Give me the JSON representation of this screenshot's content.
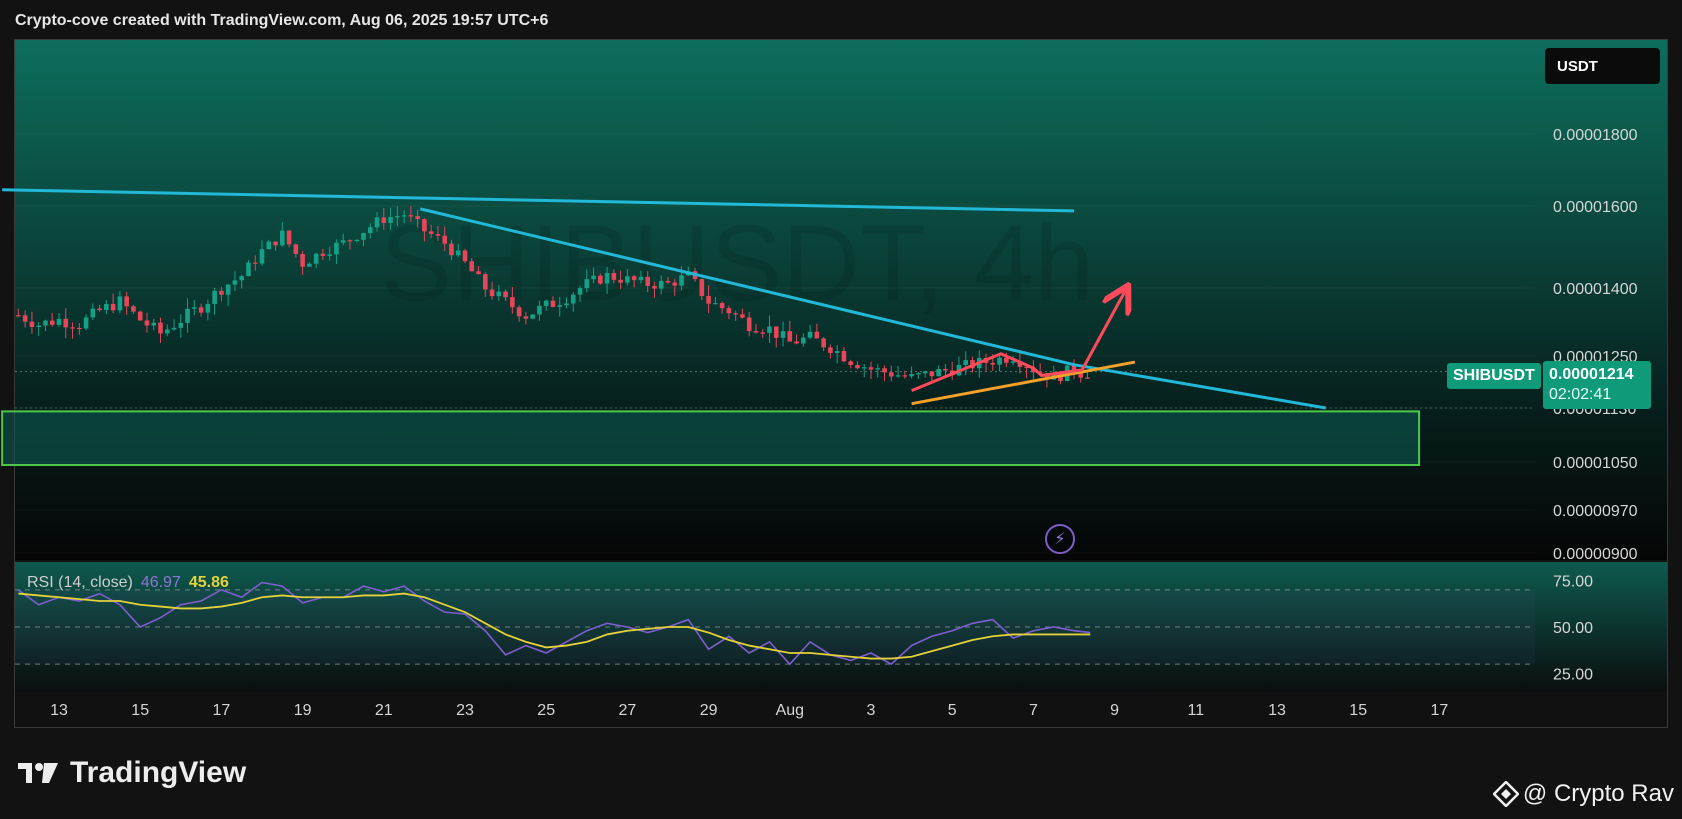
{
  "header": {
    "text": "Crypto-cove created with TradingView.com, Aug 06, 2025 19:57 UTC+6"
  },
  "watermark": {
    "symbol": "SHIBUSDT, 4h"
  },
  "currency": "USDT",
  "symbol_tag": "SHIBUSDT",
  "price_tag": {
    "price": "0.00001214",
    "countdown": "02:02:41"
  },
  "rsi_legend": {
    "label": "RSI (14, close)",
    "rsi_value": "46.97",
    "ma_value": "45.86"
  },
  "brand": {
    "name": "TradingView"
  },
  "credit": {
    "text": "@ Crypto Rav"
  },
  "colors": {
    "up": "#16a087",
    "down": "#e8455a",
    "trendline": "#22b8d8",
    "support_line": "#f3a12a",
    "pattern": "#ff4a5c",
    "zone_border": "#4cc74a",
    "rsi": "#7e5fd0",
    "rsi_ma": "#e4d23a"
  },
  "chart_data": [
    {
      "type": "candlestick",
      "symbol": "SHIBUSDT",
      "timeframe": "4h",
      "x_tick_labels": [
        "13",
        "15",
        "17",
        "19",
        "21",
        "23",
        "25",
        "27",
        "29",
        "Aug",
        "3",
        "5",
        "7",
        "9",
        "11",
        "13",
        "15",
        "17"
      ],
      "y_tick_labels": [
        "0.00001800",
        "0.00001600",
        "0.00001400",
        "0.00001250",
        "0.00001130",
        "0.00001050",
        "0.00000970",
        "0.00000900"
      ],
      "close_path": [
        [
          12.0,
          1.34e-05
        ],
        [
          12.5,
          1.32e-05
        ],
        [
          13.0,
          1.33e-05
        ],
        [
          13.5,
          1.32e-05
        ],
        [
          14.0,
          1.35e-05
        ],
        [
          14.5,
          1.37e-05
        ],
        [
          15.0,
          1.33e-05
        ],
        [
          15.5,
          1.3e-05
        ],
        [
          16.0,
          1.33e-05
        ],
        [
          16.5,
          1.36e-05
        ],
        [
          17.0,
          1.4e-05
        ],
        [
          17.5,
          1.43e-05
        ],
        [
          18.0,
          1.49e-05
        ],
        [
          18.5,
          1.53e-05
        ],
        [
          19.0,
          1.46e-05
        ],
        [
          19.5,
          1.49e-05
        ],
        [
          20.0,
          1.51e-05
        ],
        [
          20.5,
          1.54e-05
        ],
        [
          21.0,
          1.57e-05
        ],
        [
          21.5,
          1.58e-05
        ],
        [
          22.0,
          1.54e-05
        ],
        [
          22.5,
          1.51e-05
        ],
        [
          23.0,
          1.46e-05
        ],
        [
          23.5,
          1.4e-05
        ],
        [
          24.0,
          1.37e-05
        ],
        [
          24.5,
          1.34e-05
        ],
        [
          25.0,
          1.36e-05
        ],
        [
          25.5,
          1.38e-05
        ],
        [
          26.0,
          1.41e-05
        ],
        [
          26.5,
          1.43e-05
        ],
        [
          27.0,
          1.42e-05
        ],
        [
          27.5,
          1.41e-05
        ],
        [
          28.0,
          1.41e-05
        ],
        [
          28.5,
          1.43e-05
        ],
        [
          29.0,
          1.37e-05
        ],
        [
          29.5,
          1.35e-05
        ],
        [
          30.0,
          1.32e-05
        ],
        [
          30.5,
          1.31e-05
        ],
        [
          31.0,
          1.28e-05
        ],
        [
          31.5,
          1.29e-05
        ],
        [
          32.0,
          1.27e-05
        ],
        [
          32.5,
          1.24e-05
        ],
        [
          33.0,
          1.22e-05
        ],
        [
          33.5,
          1.21e-05
        ],
        [
          34.0,
          1.2e-05
        ],
        [
          34.5,
          1.21e-05
        ],
        [
          35.0,
          1.22e-05
        ],
        [
          35.5,
          1.23e-05
        ],
        [
          36.0,
          1.24e-05
        ],
        [
          36.5,
          1.25e-05
        ],
        [
          37.0,
          1.22e-05
        ],
        [
          37.5,
          1.2e-05
        ],
        [
          37.75,
          1.21e-05
        ],
        [
          38.0,
          1.22e-05
        ],
        [
          38.2,
          1.21e-05
        ],
        [
          38.4,
          1.21e-05
        ]
      ],
      "annotations": [
        {
          "kind": "trendline",
          "points": [
            [
              11.6,
              1.645e-05
            ],
            [
              38.0,
              1.588e-05
            ]
          ]
        },
        {
          "kind": "trendline",
          "points": [
            [
              21.9,
              1.593e-05
            ],
            [
              38.0,
              1.23e-05
            ],
            [
              44.2,
              1.13e-05
            ]
          ]
        },
        {
          "kind": "support_line",
          "points": [
            [
              34.0,
              1.14e-05
            ],
            [
              39.5,
              1.236e-05
            ]
          ]
        },
        {
          "kind": "pattern",
          "points": [
            [
              34.0,
              1.17e-05
            ],
            [
              36.2,
              1.255e-05
            ],
            [
              37.0,
              1.222e-05
            ],
            [
              37.2,
              1.205e-05
            ],
            [
              38.2,
              1.218e-05
            ]
          ]
        },
        {
          "kind": "projection_arrow",
          "points": [
            [
              38.2,
              1.218e-05
            ],
            [
              39.3,
              1.4e-05
            ]
          ]
        },
        {
          "kind": "support_zone",
          "x_range": [
            11.6,
            46.5
          ],
          "y_range": [
            1.045e-05,
            1.125e-05
          ]
        }
      ]
    },
    {
      "type": "line",
      "title": "RSI (14, close)",
      "ylim": [
        15,
        85
      ],
      "y_tick_labels": [
        "75.00",
        "50.00",
        "25.00"
      ],
      "levels": [
        70,
        50,
        30
      ],
      "series": [
        {
          "name": "RSI",
          "values": [
            [
              12.0,
              70
            ],
            [
              12.5,
              62
            ],
            [
              13.0,
              66
            ],
            [
              13.5,
              64
            ],
            [
              14.0,
              68
            ],
            [
              14.5,
              62
            ],
            [
              15.0,
              50
            ],
            [
              15.5,
              55
            ],
            [
              16.0,
              62
            ],
            [
              16.5,
              64
            ],
            [
              17.0,
              70
            ],
            [
              17.5,
              66
            ],
            [
              18.0,
              74
            ],
            [
              18.5,
              72
            ],
            [
              19.0,
              63
            ],
            [
              19.5,
              66
            ],
            [
              20.0,
              66
            ],
            [
              20.5,
              72
            ],
            [
              21.0,
              69
            ],
            [
              21.5,
              72
            ],
            [
              22.0,
              64
            ],
            [
              22.5,
              58
            ],
            [
              23.0,
              57
            ],
            [
              23.5,
              48
            ],
            [
              24.0,
              35
            ],
            [
              24.5,
              40
            ],
            [
              25.0,
              36
            ],
            [
              25.5,
              42
            ],
            [
              26.0,
              48
            ],
            [
              26.5,
              52
            ],
            [
              27.0,
              50
            ],
            [
              27.5,
              47
            ],
            [
              28.0,
              50
            ],
            [
              28.5,
              54
            ],
            [
              29.0,
              38
            ],
            [
              29.5,
              45
            ],
            [
              30.0,
              36
            ],
            [
              30.5,
              42
            ],
            [
              31.0,
              30
            ],
            [
              31.5,
              42
            ],
            [
              32.0,
              35
            ],
            [
              32.5,
              32
            ],
            [
              33.0,
              36
            ],
            [
              33.5,
              30
            ],
            [
              34.0,
              40
            ],
            [
              34.5,
              45
            ],
            [
              35.0,
              48
            ],
            [
              35.5,
              52
            ],
            [
              36.0,
              54
            ],
            [
              36.5,
              44
            ],
            [
              37.0,
              48
            ],
            [
              37.5,
              50
            ],
            [
              38.0,
              48
            ],
            [
              38.4,
              47
            ]
          ]
        },
        {
          "name": "MA",
          "values": [
            [
              12.0,
              68
            ],
            [
              12.5,
              67
            ],
            [
              13.0,
              66
            ],
            [
              13.5,
              65
            ],
            [
              14.0,
              64
            ],
            [
              14.5,
              64
            ],
            [
              15.0,
              62
            ],
            [
              15.5,
              61
            ],
            [
              16.0,
              60
            ],
            [
              16.5,
              60
            ],
            [
              17.0,
              61
            ],
            [
              17.5,
              63
            ],
            [
              18.0,
              66
            ],
            [
              18.5,
              67
            ],
            [
              19.0,
              66
            ],
            [
              19.5,
              66
            ],
            [
              20.0,
              66
            ],
            [
              20.5,
              67
            ],
            [
              21.0,
              67
            ],
            [
              21.5,
              68
            ],
            [
              22.0,
              66
            ],
            [
              22.5,
              62
            ],
            [
              23.0,
              58
            ],
            [
              23.5,
              52
            ],
            [
              24.0,
              46
            ],
            [
              24.5,
              42
            ],
            [
              25.0,
              39
            ],
            [
              25.5,
              40
            ],
            [
              26.0,
              42
            ],
            [
              26.5,
              46
            ],
            [
              27.0,
              48
            ],
            [
              27.5,
              49
            ],
            [
              28.0,
              50
            ],
            [
              28.5,
              50
            ],
            [
              29.0,
              47
            ],
            [
              29.5,
              43
            ],
            [
              30.0,
              40
            ],
            [
              30.5,
              38
            ],
            [
              31.0,
              36
            ],
            [
              31.5,
              36
            ],
            [
              32.0,
              35
            ],
            [
              32.5,
              34
            ],
            [
              33.0,
              33
            ],
            [
              33.5,
              33
            ],
            [
              34.0,
              34
            ],
            [
              34.5,
              37
            ],
            [
              35.0,
              40
            ],
            [
              35.5,
              43
            ],
            [
              36.0,
              45
            ],
            [
              36.5,
              46
            ],
            [
              37.0,
              46
            ],
            [
              37.5,
              46
            ],
            [
              38.0,
              46
            ],
            [
              38.4,
              46
            ]
          ]
        }
      ]
    }
  ]
}
